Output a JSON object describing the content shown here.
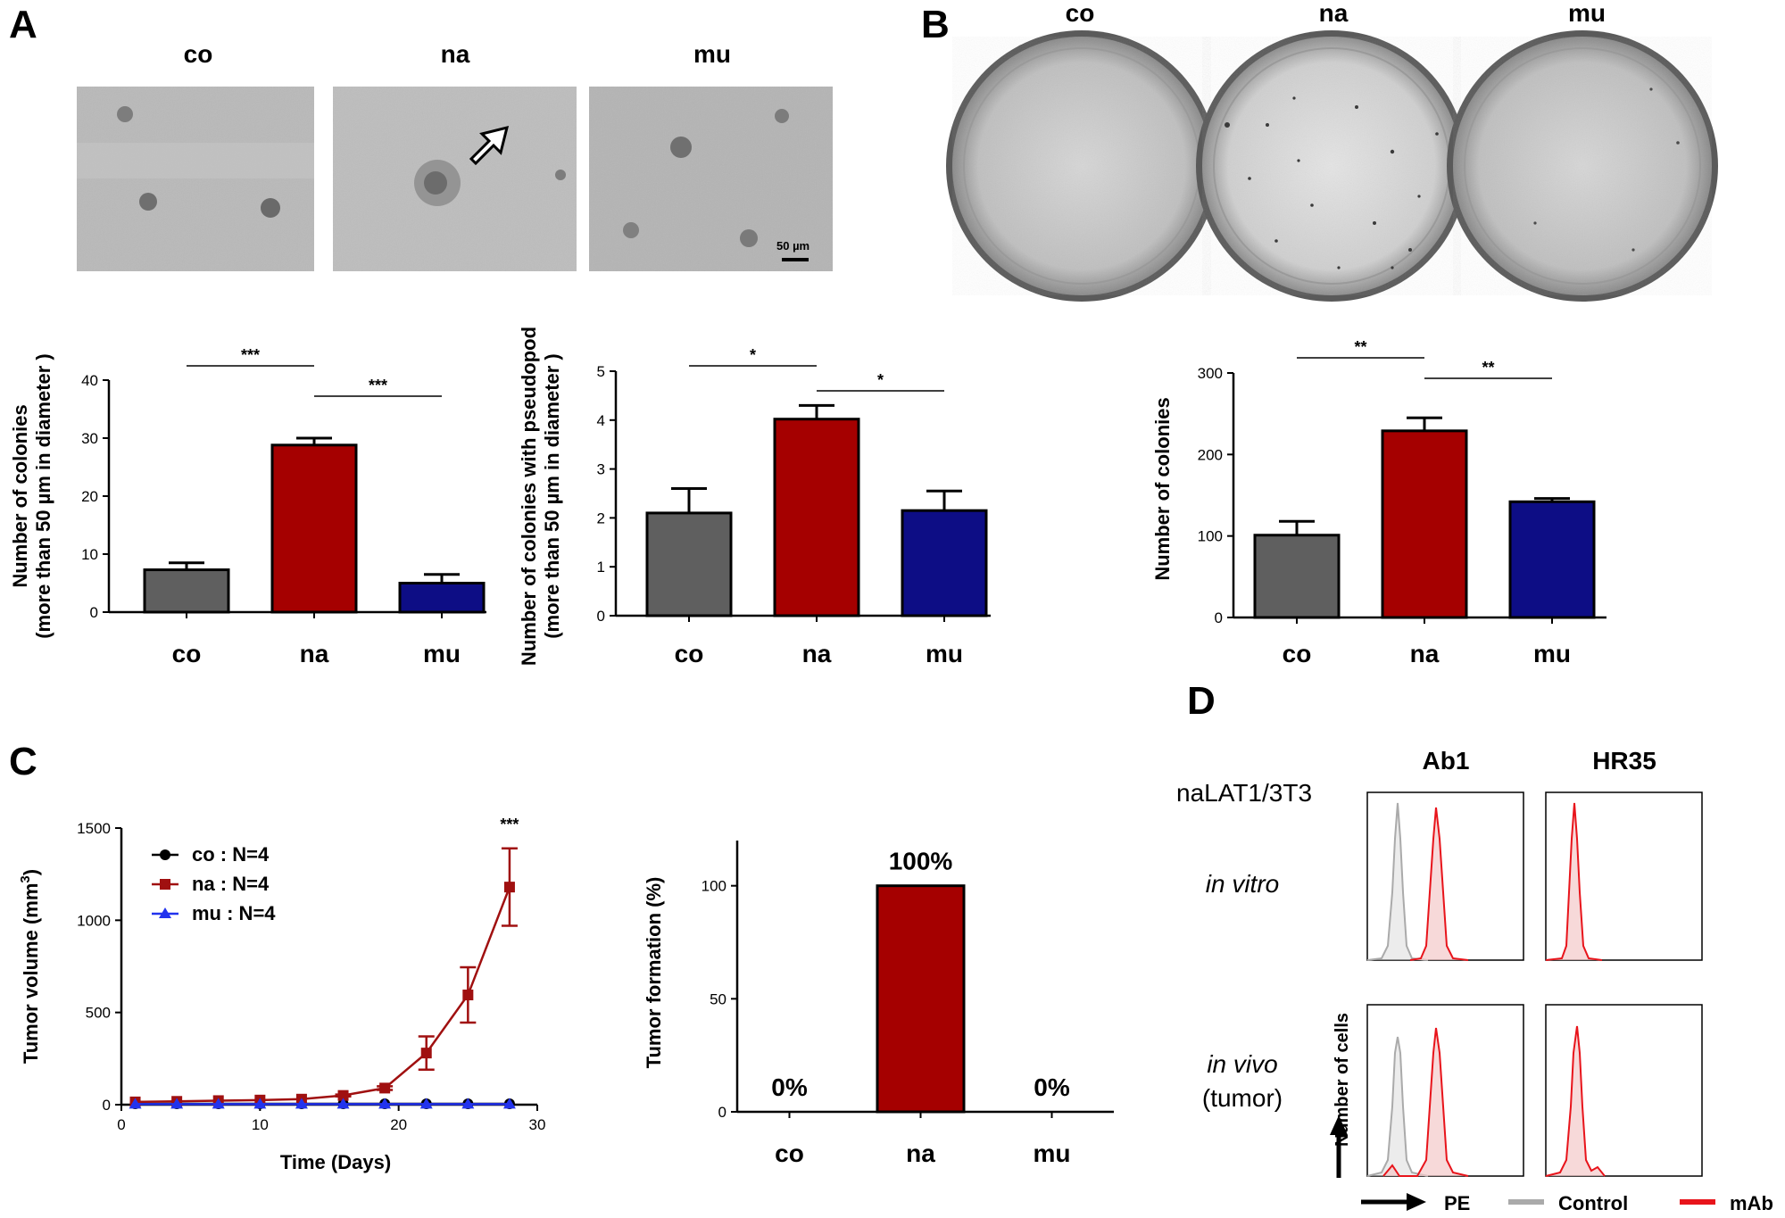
{
  "panels": {
    "A": {
      "label": "A",
      "micrographs": [
        {
          "label": "co"
        },
        {
          "label": "na"
        },
        {
          "label": "mu"
        }
      ],
      "scale_bar": "50 µm"
    },
    "B": {
      "label": "B",
      "plates": [
        {
          "label": "co"
        },
        {
          "label": "na"
        },
        {
          "label": "mu"
        }
      ]
    },
    "C": {
      "label": "C"
    },
    "D": {
      "label": "D",
      "cell_line": "naLAT1/3T3",
      "columns": [
        "Ab1",
        "HR35"
      ],
      "rows": [
        {
          "label": "in vitro",
          "sublabel": ""
        },
        {
          "label": "in vivo",
          "sublabel": "(tumor)"
        }
      ],
      "y_axis": "Number of cells",
      "x_axis": "PE",
      "legend": [
        {
          "name": "Control",
          "color": "#aaaaaa"
        },
        {
          "name": "mAb",
          "color": "#e8141b"
        }
      ]
    }
  },
  "colors": {
    "co": "#5f5f5f",
    "na": "#a50000",
    "mu": "#0d0d85",
    "line_co": "#000000",
    "line_na": "#a01010",
    "line_mu": "#2233ee"
  },
  "chart_data": [
    {
      "id": "A1",
      "type": "bar",
      "categories": [
        "co",
        "na",
        "mu"
      ],
      "values": [
        7.3,
        28.8,
        5.0
      ],
      "errors": [
        1.2,
        1.2,
        1.5
      ],
      "ylim": [
        0,
        40
      ],
      "yticks": [
        "0",
        "10",
        "20",
        "30",
        "40"
      ],
      "ylabel": "Number of colonies",
      "ylabel2": "(more than 50 µm in diameter )",
      "xlabel": "",
      "sig": [
        {
          "from": 0,
          "to": 1,
          "text": "***"
        },
        {
          "from": 1,
          "to": 2,
          "text": "***"
        }
      ]
    },
    {
      "id": "A2",
      "type": "bar",
      "categories": [
        "co",
        "na",
        "mu"
      ],
      "values": [
        2.1,
        4.02,
        2.15
      ],
      "errors": [
        0.5,
        0.28,
        0.4
      ],
      "ylim": [
        0,
        5
      ],
      "yticks": [
        "0",
        "1",
        "2",
        "3",
        "4",
        "5"
      ],
      "ylabel": "Number of colonies with pseudopod",
      "ylabel2": "(more than 50 µm in diameter )",
      "xlabel": "",
      "sig": [
        {
          "from": 0,
          "to": 1,
          "text": "*"
        },
        {
          "from": 1,
          "to": 2,
          "text": "*"
        }
      ]
    },
    {
      "id": "B1",
      "type": "bar",
      "categories": [
        "co",
        "na",
        "mu"
      ],
      "values": [
        101,
        229,
        142
      ],
      "errors": [
        17,
        16,
        4
      ],
      "ylim": [
        0,
        300
      ],
      "yticks": [
        "0",
        "100",
        "200",
        "300"
      ],
      "ylabel": "Number of colonies",
      "ylabel2": "",
      "xlabel": "",
      "sig": [
        {
          "from": 0,
          "to": 1,
          "text": "**"
        },
        {
          "from": 1,
          "to": 2,
          "text": "**"
        }
      ]
    },
    {
      "id": "C1",
      "type": "line",
      "x": [
        1,
        4,
        7,
        10,
        13,
        16,
        19,
        22,
        25,
        28
      ],
      "series": [
        {
          "name": "co : N=4",
          "key": "co",
          "marker": "circle",
          "values": [
            5,
            5,
            5,
            5,
            5,
            5,
            5,
            5,
            5,
            5
          ],
          "errors": [
            0,
            0,
            0,
            0,
            0,
            0,
            0,
            0,
            0,
            0
          ]
        },
        {
          "name": "na : N=4",
          "key": "na",
          "marker": "square",
          "values": [
            15,
            18,
            22,
            25,
            30,
            50,
            90,
            280,
            595,
            1180
          ],
          "errors": [
            0,
            0,
            0,
            0,
            0,
            5,
            10,
            90,
            150,
            210
          ]
        },
        {
          "name": "mu : N=4",
          "key": "mu",
          "marker": "triangle",
          "values": [
            3,
            3,
            3,
            3,
            3,
            3,
            3,
            3,
            3,
            3
          ],
          "errors": [
            0,
            0,
            0,
            0,
            0,
            0,
            0,
            0,
            0,
            0
          ]
        }
      ],
      "xlim": [
        0,
        30
      ],
      "ylim": [
        0,
        1500
      ],
      "xticks": [
        "0",
        "10",
        "20",
        "30"
      ],
      "yticks": [
        "0",
        "500",
        "1000",
        "1500"
      ],
      "xlabel": "Time (Days)",
      "ylabel": "Tumor volume (mm",
      "ylabel_sup": "3",
      "ylabel_end": ")",
      "annotation": "***",
      "legend_position": "top-left"
    },
    {
      "id": "C2",
      "type": "bar",
      "categories": [
        "co",
        "na",
        "mu"
      ],
      "values": [
        0,
        100,
        0
      ],
      "data_labels": [
        "0%",
        "100%",
        "0%"
      ],
      "ylim": [
        0,
        120
      ],
      "yticks": [
        "0",
        "50",
        "100"
      ],
      "ylabel": "Tumor formation (%)",
      "xlabel": ""
    }
  ]
}
